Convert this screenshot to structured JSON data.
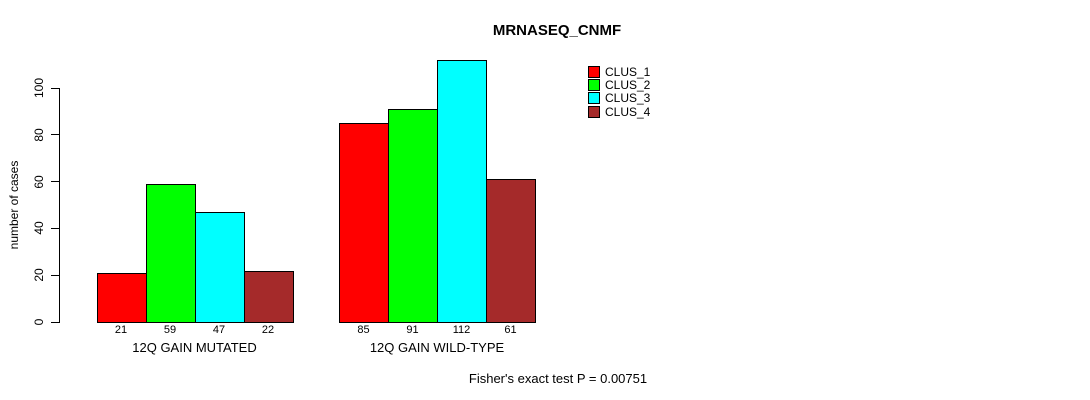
{
  "chart_data": {
    "type": "bar",
    "title": "MRNASEQ_CNMF",
    "ylabel": "number of cases",
    "xlabel": "",
    "categories": [
      "12Q GAIN MUTATED",
      "12Q GAIN WILD-TYPE"
    ],
    "series": [
      {
        "name": "CLUS_1",
        "color": "#FF0000",
        "values": [
          21,
          85
        ]
      },
      {
        "name": "CLUS_2",
        "color": "#00FF00",
        "values": [
          59,
          91
        ]
      },
      {
        "name": "CLUS_3",
        "color": "#00FFFF",
        "values": [
          47,
          112
        ]
      },
      {
        "name": "CLUS_4",
        "color": "#A52A2A",
        "values": [
          22,
          61
        ]
      }
    ],
    "yticks": [
      0,
      20,
      40,
      60,
      80,
      100
    ],
    "ylim": [
      0,
      120
    ],
    "bar_value_labels": true,
    "grid": false,
    "legend_position": "top-right",
    "annotation": "Fisher's exact test P = 0.00751"
  }
}
